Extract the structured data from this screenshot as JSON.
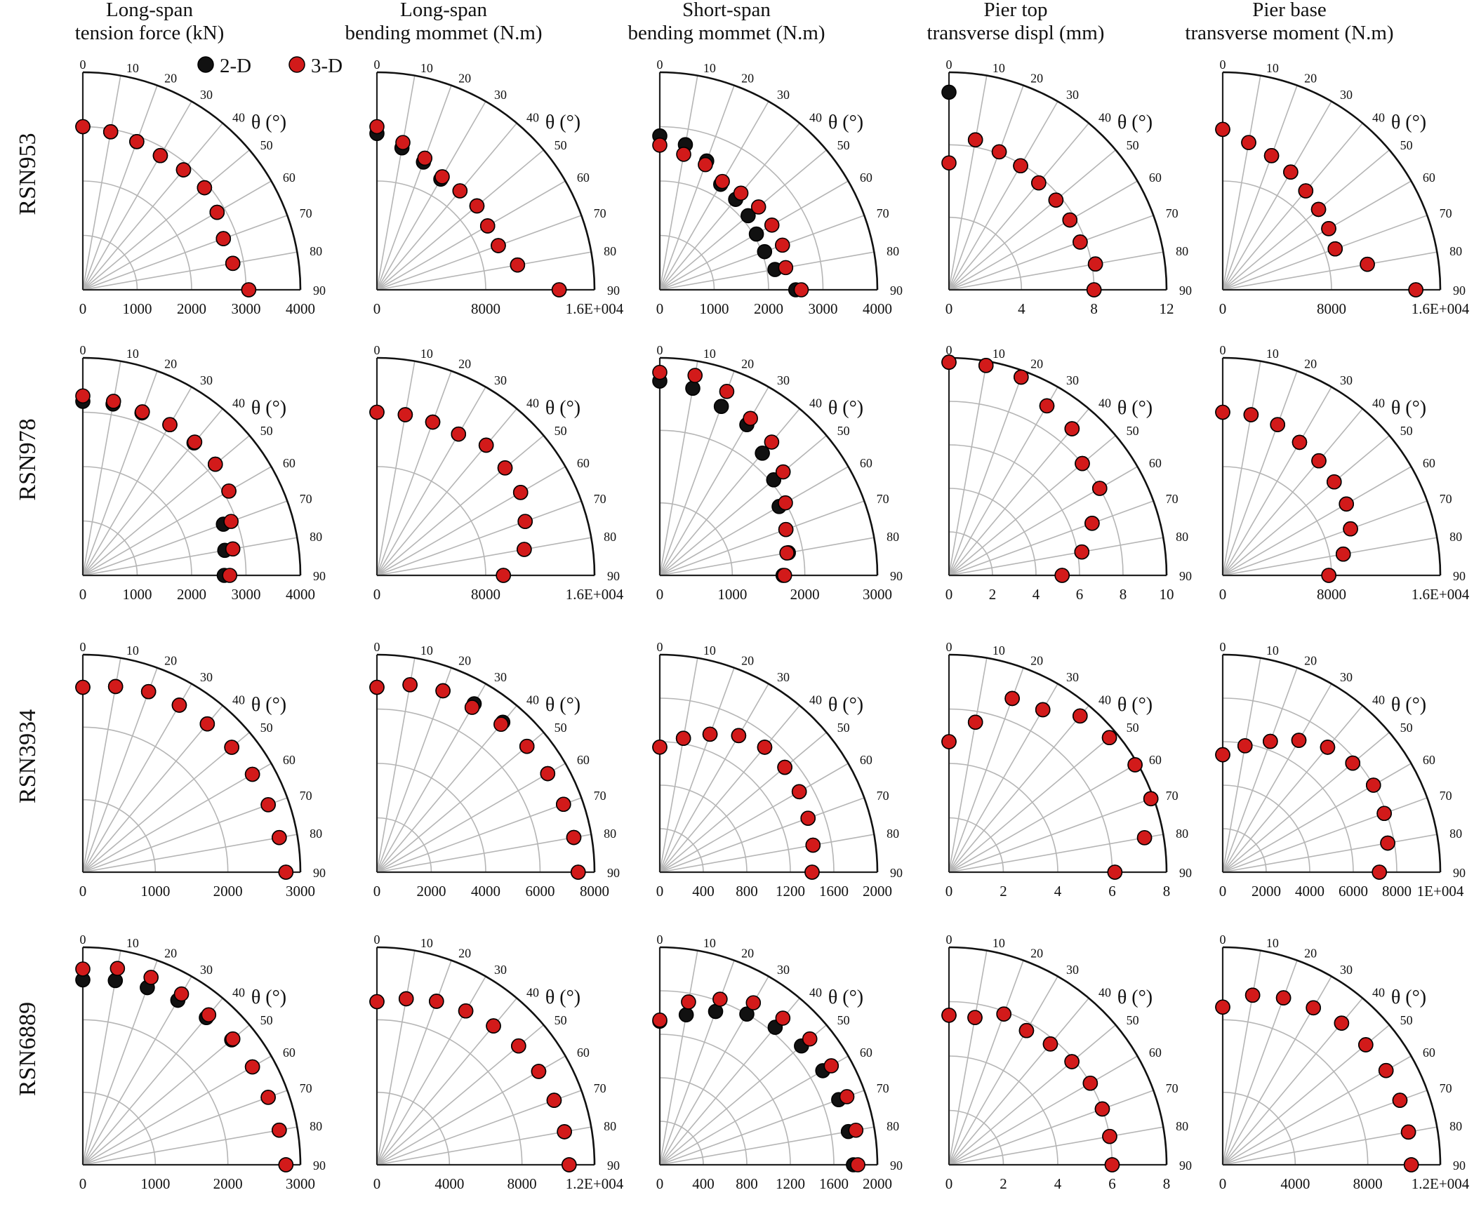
{
  "figure": {
    "legend": {
      "items": [
        {
          "label": "2-D",
          "color": "#111111"
        },
        {
          "label": "3-D",
          "color": "#d21a1a"
        }
      ]
    },
    "theta_label": "θ (°)",
    "angle_ticks": [
      "0",
      "10",
      "20",
      "30",
      "40",
      "50",
      "60",
      "70",
      "80",
      "90"
    ],
    "columns": [
      {
        "title_lines": [
          "Long-span",
          "tension force (kN)"
        ]
      },
      {
        "title_lines": [
          "Long-span",
          "bending mommet (N.m)"
        ]
      },
      {
        "title_lines": [
          "Short-span",
          "bending mommet (N.m)"
        ]
      },
      {
        "title_lines": [
          "Pier top",
          "transverse displ (mm)"
        ]
      },
      {
        "title_lines": [
          "Pier base",
          "transverse moment (N.m)"
        ]
      }
    ],
    "rows": [
      "RSN953",
      "RSN978",
      "RSN3934",
      "RSN6889"
    ]
  },
  "chart_data": [
    {
      "type": "scatter",
      "row": "RSN953",
      "column": "Long-span tension force (kN)",
      "rmax": 4000,
      "r_ticks": [
        "0",
        "1000",
        "2000",
        "3000",
        "4000"
      ],
      "theta": [
        0,
        10,
        20,
        30,
        40,
        50,
        60,
        70,
        80,
        90
      ],
      "series": [
        {
          "name": "2-D",
          "r": [
            3000,
            2950,
            2900,
            2850,
            2880,
            2920,
            2850,
            2750,
            2800,
            3050
          ]
        },
        {
          "name": "3-D",
          "r": [
            3000,
            2950,
            2900,
            2850,
            2880,
            2920,
            2850,
            2750,
            2800,
            3050
          ]
        }
      ]
    },
    {
      "type": "scatter",
      "row": "RSN953",
      "column": "Long-span bending mommet (N.m)",
      "rmax": 16000,
      "r_ticks": [
        "0",
        "8000",
        "1.6E+004"
      ],
      "theta": [
        0,
        10,
        20,
        30,
        40,
        50,
        60,
        70,
        80,
        90
      ],
      "series": [
        {
          "name": "2-D",
          "r": [
            11500,
            10600,
            10000,
            9400,
            9500,
            9600,
            9400,
            9500,
            10500,
            13400
          ]
        },
        {
          "name": "3-D",
          "r": [
            12000,
            11000,
            10300,
            9600,
            9500,
            9600,
            9400,
            9500,
            10500,
            13400
          ]
        }
      ]
    },
    {
      "type": "scatter",
      "row": "RSN953",
      "column": "Short-span bending mommet (N.m)",
      "rmax": 4000,
      "r_ticks": [
        "0",
        "1000",
        "2000",
        "3000",
        "4000"
      ],
      "theta": [
        0,
        10,
        20,
        30,
        40,
        50,
        60,
        70,
        80,
        90
      ],
      "series": [
        {
          "name": "2-D",
          "r": [
            2830,
            2710,
            2520,
            2240,
            2170,
            2120,
            2050,
            2050,
            2150,
            2500
          ]
        },
        {
          "name": "3-D",
          "r": [
            2660,
            2530,
            2450,
            2300,
            2320,
            2370,
            2380,
            2400,
            2350,
            2600
          ]
        }
      ]
    },
    {
      "type": "scatter",
      "row": "RSN953",
      "column": "Pier top transverse displ (mm)",
      "rmax": 12,
      "r_ticks": [
        "0",
        "4",
        "8",
        "12"
      ],
      "theta": [
        0,
        10,
        20,
        30,
        40,
        50,
        60,
        70,
        80,
        90
      ],
      "series": [
        {
          "name": "2-D",
          "r": [
            10.9,
            8.4,
            8.1,
            7.9,
            7.7,
            7.7,
            7.7,
            7.7,
            8.2,
            8.0
          ]
        },
        {
          "name": "3-D",
          "r": [
            7.0,
            8.4,
            8.1,
            7.9,
            7.7,
            7.7,
            7.7,
            7.7,
            8.2,
            8.0
          ]
        }
      ]
    },
    {
      "type": "scatter",
      "row": "RSN953",
      "column": "Pier base transverse moment (N.m)",
      "rmax": 16000,
      "r_ticks": [
        "0",
        "8000",
        "1.6E+004"
      ],
      "theta": [
        0,
        10,
        20,
        30,
        40,
        50,
        60,
        70,
        80,
        90
      ],
      "series": [
        {
          "name": "2-D",
          "r": [
            11800,
            11000,
            10500,
            10000,
            9500,
            9200,
            9000,
            8800,
            10800,
            14200
          ]
        },
        {
          "name": "3-D",
          "r": [
            11800,
            11000,
            10500,
            10000,
            9500,
            9200,
            9000,
            8800,
            10800,
            14200
          ]
        }
      ]
    },
    {
      "type": "scatter",
      "row": "RSN978",
      "column": "Long-span tension force (kN)",
      "rmax": 4000,
      "r_ticks": [
        "0",
        "1000",
        "2000",
        "3000",
        "4000"
      ],
      "theta": [
        0,
        10,
        20,
        30,
        40,
        50,
        60,
        70,
        80,
        90
      ],
      "series": [
        {
          "name": "2-D",
          "r": [
            3200,
            3200,
            3180,
            3200,
            3180,
            3180,
            3100,
            2750,
            2650,
            2600
          ]
        },
        {
          "name": "3-D",
          "r": [
            3300,
            3250,
            3200,
            3200,
            3200,
            3180,
            3100,
            2900,
            2800,
            2700
          ]
        }
      ]
    },
    {
      "type": "scatter",
      "row": "RSN978",
      "column": "Long-span bending mommet (N.m)",
      "rmax": 16000,
      "r_ticks": [
        "0",
        "8000",
        "1.6E+004"
      ],
      "theta": [
        0,
        10,
        20,
        30,
        40,
        50,
        60,
        70,
        80,
        90
      ],
      "series": [
        {
          "name": "2-D",
          "r": [
            12000,
            12000,
            12000,
            12000,
            12500,
            12300,
            12200,
            11600,
            11000,
            9300
          ]
        },
        {
          "name": "3-D",
          "r": [
            12000,
            12000,
            12000,
            12000,
            12500,
            12300,
            12200,
            11600,
            11000,
            9300
          ]
        }
      ]
    },
    {
      "type": "scatter",
      "row": "RSN978",
      "column": "Short-span bending mommet (N.m)",
      "rmax": 3000,
      "r_ticks": [
        "0",
        "1000",
        "2000",
        "3000"
      ],
      "theta": [
        0,
        10,
        20,
        30,
        40,
        50,
        60,
        70,
        80,
        90
      ],
      "series": [
        {
          "name": "2-D",
          "r": [
            2680,
            2620,
            2480,
            2400,
            2200,
            2050,
            1900,
            1850,
            1800,
            1700
          ]
        },
        {
          "name": "3-D",
          "r": [
            2800,
            2800,
            2700,
            2500,
            2400,
            2220,
            2000,
            1850,
            1780,
            1720
          ]
        }
      ]
    },
    {
      "type": "scatter",
      "row": "RSN978",
      "column": "Pier top transverse displ (mm)",
      "rmax": 10,
      "r_ticks": [
        "0",
        "2",
        "4",
        "6",
        "8",
        "10"
      ],
      "theta": [
        0,
        10,
        20,
        30,
        40,
        50,
        60,
        70,
        80,
        90
      ],
      "series": [
        {
          "name": "2-D",
          "r": [
            9.8,
            9.8,
            9.7,
            9.0,
            8.8,
            8.0,
            8.0,
            7.0,
            6.2,
            5.2
          ]
        },
        {
          "name": "3-D",
          "r": [
            9.8,
            9.8,
            9.7,
            9.0,
            8.8,
            8.0,
            8.0,
            7.0,
            6.2,
            5.2
          ]
        }
      ]
    },
    {
      "type": "scatter",
      "row": "RSN978",
      "column": "Pier base transverse moment (N.m)",
      "rmax": 16000,
      "r_ticks": [
        "0",
        "8000",
        "1.6E+004"
      ],
      "theta": [
        0,
        10,
        20,
        30,
        40,
        50,
        60,
        70,
        80,
        90
      ],
      "series": [
        {
          "name": "2-D",
          "r": [
            12000,
            12000,
            11800,
            11300,
            11000,
            10700,
            10500,
            10000,
            9000,
            7800
          ]
        },
        {
          "name": "3-D",
          "r": [
            12000,
            12000,
            11800,
            11300,
            11000,
            10700,
            10500,
            10000,
            9000,
            7800
          ]
        }
      ]
    },
    {
      "type": "scatter",
      "row": "RSN3934",
      "column": "Long-span tension force (kN)",
      "rmax": 3000,
      "r_ticks": [
        "0",
        "1000",
        "2000",
        "3000"
      ],
      "theta": [
        0,
        10,
        20,
        30,
        40,
        50,
        60,
        70,
        80,
        90
      ],
      "series": [
        {
          "name": "2-D",
          "r": [
            2550,
            2600,
            2650,
            2660,
            2670,
            2680,
            2700,
            2720,
            2750,
            2800
          ]
        },
        {
          "name": "3-D",
          "r": [
            2550,
            2600,
            2650,
            2660,
            2670,
            2680,
            2700,
            2720,
            2750,
            2800
          ]
        }
      ]
    },
    {
      "type": "scatter",
      "row": "RSN3934",
      "column": "Long-span bending mommet (N.m)",
      "rmax": 8000,
      "r_ticks": [
        "0",
        "2000",
        "4000",
        "6000",
        "8000"
      ],
      "theta": [
        0,
        10,
        20,
        30,
        40,
        50,
        60,
        70,
        80,
        90
      ],
      "series": [
        {
          "name": "2-D",
          "r": [
            6800,
            7000,
            7100,
            7150,
            7200,
            7200,
            7250,
            7300,
            7350,
            7400
          ]
        },
        {
          "name": "3-D",
          "r": [
            6800,
            7000,
            7100,
            7000,
            7100,
            7200,
            7250,
            7300,
            7350,
            7400
          ]
        }
      ]
    },
    {
      "type": "scatter",
      "row": "RSN3934",
      "column": "Short-span bending mommet (N.m)",
      "rmax": 2000,
      "r_ticks": [
        "0",
        "400",
        "800",
        "1200",
        "1600",
        "2000"
      ],
      "theta": [
        0,
        10,
        20,
        30,
        40,
        50,
        60,
        70,
        80,
        90
      ],
      "series": [
        {
          "name": "2-D",
          "r": [
            1150,
            1250,
            1350,
            1450,
            1500,
            1500,
            1480,
            1450,
            1430,
            1400
          ]
        },
        {
          "name": "3-D",
          "r": [
            1150,
            1250,
            1350,
            1450,
            1500,
            1500,
            1480,
            1450,
            1430,
            1400
          ]
        }
      ]
    },
    {
      "type": "scatter",
      "row": "RSN3934",
      "column": "Pier top transverse displ (mm)",
      "rmax": 8,
      "r_ticks": [
        "0",
        "2",
        "4",
        "6",
        "8"
      ],
      "theta": [
        0,
        10,
        20,
        30,
        40,
        50,
        60,
        70,
        80,
        90
      ],
      "series": [
        {
          "name": "2-D",
          "r": [
            4.8,
            5.6,
            6.8,
            6.9,
            7.5,
            7.7,
            7.9,
            7.9,
            7.3,
            6.1
          ]
        },
        {
          "name": "3-D",
          "r": [
            4.8,
            5.6,
            6.8,
            6.9,
            7.5,
            7.7,
            7.9,
            7.9,
            7.3,
            6.1
          ]
        }
      ]
    },
    {
      "type": "scatter",
      "row": "RSN3934",
      "column": "Pier base transverse moment (N.m)",
      "rmax": 10000,
      "r_ticks": [
        "0",
        "2000",
        "4000",
        "6000",
        "8000",
        "1E+004"
      ],
      "theta": [
        0,
        10,
        20,
        30,
        40,
        50,
        60,
        70,
        80,
        90
      ],
      "series": [
        {
          "name": "2-D",
          "r": [
            5400,
            5900,
            6400,
            7000,
            7500,
            7800,
            8000,
            7900,
            7700,
            7200
          ]
        },
        {
          "name": "3-D",
          "r": [
            5400,
            5900,
            6400,
            7000,
            7500,
            7800,
            8000,
            7900,
            7700,
            7200
          ]
        }
      ]
    },
    {
      "type": "scatter",
      "row": "RSN6889",
      "column": "Long-span tension force (kN)",
      "rmax": 3000,
      "r_ticks": [
        "0",
        "1000",
        "2000",
        "3000"
      ],
      "theta": [
        0,
        10,
        20,
        30,
        40,
        50,
        60,
        70,
        80,
        90
      ],
      "series": [
        {
          "name": "2-D",
          "r": [
            2550,
            2580,
            2600,
            2620,
            2650,
            2680,
            2700,
            2720,
            2750,
            2800
          ]
        },
        {
          "name": "3-D",
          "r": [
            2700,
            2750,
            2750,
            2720,
            2700,
            2700,
            2700,
            2720,
            2750,
            2800
          ]
        }
      ]
    },
    {
      "type": "scatter",
      "row": "RSN6889",
      "column": "Long-span bending mommet (N.m)",
      "rmax": 12000,
      "r_ticks": [
        "0",
        "4000",
        "8000",
        "1.2E+004"
      ],
      "theta": [
        0,
        10,
        20,
        30,
        40,
        50,
        60,
        70,
        80,
        90
      ],
      "series": [
        {
          "name": "2-D",
          "r": [
            9000,
            9300,
            9600,
            9800,
            10000,
            10200,
            10300,
            10400,
            10500,
            10600
          ]
        },
        {
          "name": "3-D",
          "r": [
            9000,
            9300,
            9600,
            9800,
            10000,
            10200,
            10300,
            10400,
            10500,
            10600
          ]
        }
      ]
    },
    {
      "type": "scatter",
      "row": "RSN6889",
      "column": "Short-span bending mommet (N.m)",
      "rmax": 2000,
      "r_ticks": [
        "0",
        "400",
        "800",
        "1200",
        "1600",
        "2000"
      ],
      "theta": [
        0,
        10,
        20,
        30,
        40,
        50,
        60,
        70,
        80,
        90
      ],
      "series": [
        {
          "name": "2-D",
          "r": [
            1320,
            1400,
            1500,
            1600,
            1650,
            1700,
            1730,
            1750,
            1760,
            1780
          ]
        },
        {
          "name": "3-D",
          "r": [
            1330,
            1520,
            1620,
            1720,
            1760,
            1800,
            1820,
            1830,
            1830,
            1820
          ]
        }
      ]
    },
    {
      "type": "scatter",
      "row": "RSN6889",
      "column": "Pier top transverse displ (mm)",
      "rmax": 8,
      "r_ticks": [
        "0",
        "2",
        "4",
        "6",
        "8"
      ],
      "theta": [
        0,
        10,
        20,
        30,
        40,
        50,
        60,
        70,
        80,
        90
      ],
      "series": [
        {
          "name": "2-D",
          "r": [
            5.5,
            5.5,
            5.9,
            5.7,
            5.8,
            5.9,
            6.0,
            6.0,
            6.0,
            6.0
          ]
        },
        {
          "name": "3-D",
          "r": [
            5.5,
            5.5,
            5.9,
            5.7,
            5.8,
            5.9,
            6.0,
            6.0,
            6.0,
            6.0
          ]
        }
      ]
    },
    {
      "type": "scatter",
      "row": "RSN6889",
      "column": "Pier base transverse moment (N.m)",
      "rmax": 12000,
      "r_ticks": [
        "0",
        "4000",
        "8000",
        "1.2E+004"
      ],
      "theta": [
        0,
        10,
        20,
        30,
        40,
        50,
        60,
        70,
        80,
        90
      ],
      "series": [
        {
          "name": "2-D",
          "r": [
            8700,
            9500,
            9800,
            10000,
            10200,
            10300,
            10400,
            10400,
            10400,
            10400
          ]
        },
        {
          "name": "3-D",
          "r": [
            8700,
            9500,
            9800,
            10000,
            10200,
            10300,
            10400,
            10400,
            10400,
            10400
          ]
        }
      ]
    }
  ]
}
